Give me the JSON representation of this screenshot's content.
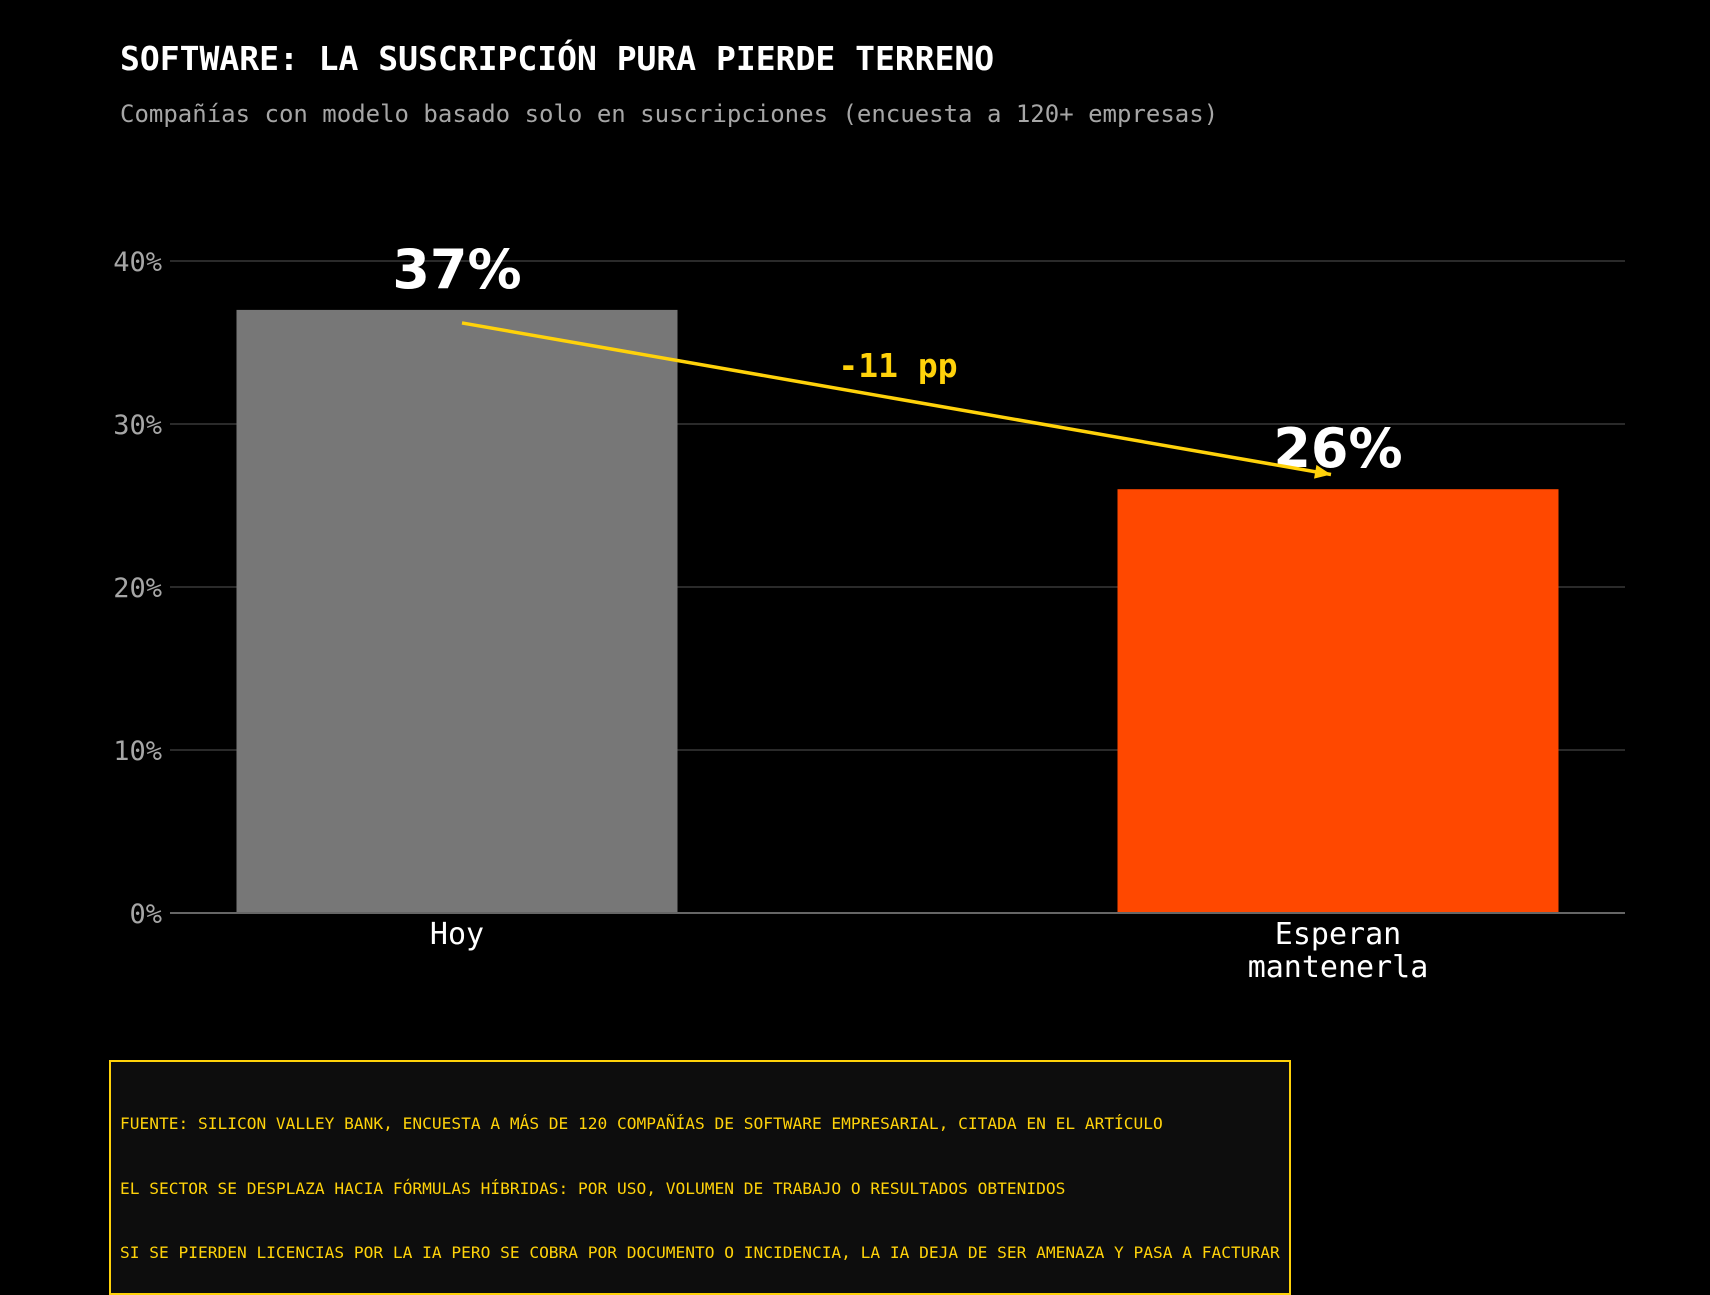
{
  "chart_data": {
    "type": "bar",
    "title": "SOFTWARE: LA SUSCRIPCIÓN PURA PIERDE TERRENO",
    "subtitle": "Compañías con modelo basado solo en suscripciones (encuesta a 120+ empresas)",
    "categories": [
      "Hoy",
      "Esperan mantenerla"
    ],
    "category_lines": [
      [
        "Hoy"
      ],
      [
        "Esperan",
        "mantenerla"
      ]
    ],
    "values": [
      37,
      26
    ],
    "data_labels": [
      "37%",
      "26%"
    ],
    "bar_colors": [
      "#777777",
      "#ff4800"
    ],
    "xlabel": "",
    "ylabel": "",
    "ylim": [
      0,
      40
    ],
    "yticks": [
      0,
      10,
      20,
      30,
      40
    ],
    "ytick_labels": [
      "0%",
      "10%",
      "20%",
      "30%",
      "40%"
    ],
    "grid": true,
    "annotation": {
      "text": "-11 pp",
      "color": "#ffd20a",
      "arrow_from_value": 36.2,
      "arrow_to_value": 26.9
    }
  },
  "source_note": {
    "lines": [
      "FUENTE: SILICON VALLEY BANK, ENCUESTA A MÁS DE 120 COMPAÑÍAS DE SOFTWARE EMPRESARIAL, CITADA EN EL ARTÍCULO",
      "EL SECTOR SE DESPLAZA HACIA FÓRMULAS HÍBRIDAS: POR USO, VOLUMEN DE TRABAJO O RESULTADOS OBTENIDOS",
      "SI SE PIERDEN LICENCIAS POR LA IA PERO SE COBRA POR DOCUMENTO O INCIDENCIA, LA IA DEJA DE SER AMENAZA Y PASA A FACTURAR"
    ],
    "color": "#ffd20a"
  },
  "colors": {
    "background": "#000000",
    "grid": "#2a2a2a",
    "axis": "#666666",
    "text_primary": "#ffffff",
    "text_secondary": "#a6a6a6",
    "accent": "#ffd20a"
  }
}
